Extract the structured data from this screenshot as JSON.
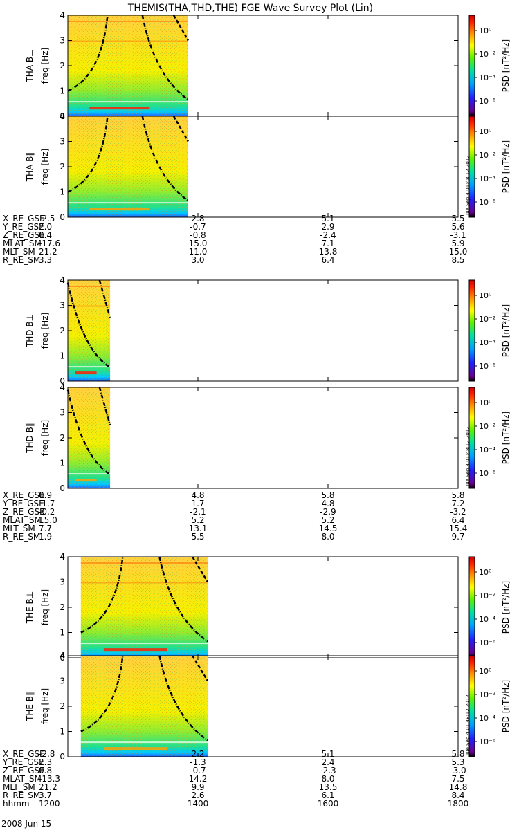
{
  "title": "THEMIS(THA,THD,THE) FGE Wave Survey Plot (Lin)",
  "colorbar": {
    "label": "PSD [nT²/Hz]",
    "ticks": [
      "10⁰",
      "10⁻²",
      "10⁻⁴",
      "10⁻⁶"
    ]
  },
  "footer": {
    "date": "2008 Jun 15"
  },
  "chart_data": {
    "type": "heatmap",
    "x_range": [
      1200,
      1800
    ],
    "x_ticks": [
      1200,
      1400,
      1600,
      1800
    ],
    "y_range": [
      0,
      4
    ],
    "y_ticks": [
      0,
      1,
      2,
      3,
      4
    ],
    "probes": [
      {
        "id": "tha",
        "panels": [
          {
            "ylabel": "THA B⊥",
            "yunit": "freq [Hz]",
            "data_span": [
              1200,
              1385
            ],
            "stamp": ""
          },
          {
            "ylabel": "THA B∥",
            "yunit": "freq [Hz]",
            "data_span": [
              1200,
              1385
            ],
            "stamp": "Tue Sep  4 01:48:12 2012"
          }
        ],
        "ephemeris": [
          {
            "name": "X_RE_GSE",
            "values": [
              "-2.5",
              "2.8",
              "5.1",
              "5.5"
            ]
          },
          {
            "name": "Y_RE_GSE",
            "values": [
              "2.0",
              "-0.7",
              "2.9",
              "5.6"
            ]
          },
          {
            "name": "Z_RE_GSE",
            "values": [
              "0.4",
              "-0.8",
              "-2.4",
              "-3.1"
            ]
          },
          {
            "name": "MLAT_SM",
            "values": [
              "-17.6",
              "15.0",
              "7.1",
              "5.9"
            ]
          },
          {
            "name": "MLT_SM",
            "values": [
              "21.2",
              "11.0",
              "13.8",
              "15.0"
            ]
          },
          {
            "name": "R_RE_SM",
            "values": [
              "3.3",
              "3.0",
              "6.4",
              "8.5"
            ]
          }
        ]
      },
      {
        "id": "thd",
        "panels": [
          {
            "ylabel": "THD B⊥",
            "yunit": "freq [Hz]",
            "data_span": [
              1200,
              1265
            ],
            "stamp": ""
          },
          {
            "ylabel": "THD B∥",
            "yunit": "freq [Hz]",
            "data_span": [
              1200,
              1265
            ],
            "stamp": "Tue Sep  4 01:48:12 2012"
          }
        ],
        "ephemeris": [
          {
            "name": "X_RE_GSE",
            "values": [
              "0.9",
              "4.8",
              "5.8",
              "5.8"
            ]
          },
          {
            "name": "Y_RE_GSE",
            "values": [
              "-1.7",
              "1.7",
              "4.8",
              "7.2"
            ]
          },
          {
            "name": "Z_RE_GSE",
            "values": [
              "-0.2",
              "-2.1",
              "-2.9",
              "-3.2"
            ]
          },
          {
            "name": "MLAT_SM",
            "values": [
              "15.0",
              "5.2",
              "5.2",
              "6.4"
            ]
          },
          {
            "name": "MLT_SM",
            "values": [
              "7.7",
              "13.1",
              "14.5",
              "15.4"
            ]
          },
          {
            "name": "R_RE_SM",
            "values": [
              "1.9",
              "5.5",
              "8.0",
              "9.7"
            ]
          }
        ]
      },
      {
        "id": "the",
        "panels": [
          {
            "ylabel": "THE B⊥",
            "yunit": "freq [Hz]",
            "data_span": [
              1220,
              1415
            ],
            "stamp": ""
          },
          {
            "ylabel": "THE B∥",
            "yunit": "freq [Hz]",
            "data_span": [
              1220,
              1415
            ],
            "stamp": "Tue Sep  4 01:48:12 2012"
          }
        ],
        "ephemeris": [
          {
            "name": "X_RE_GSE",
            "values": [
              "-2.8",
              "2.2",
              "5.1",
              "5.8"
            ]
          },
          {
            "name": "Y_RE_GSE",
            "values": [
              "2.3",
              "-1.3",
              "2.4",
              "5.3"
            ]
          },
          {
            "name": "Z_RE_GSE",
            "values": [
              "0.8",
              "-0.7",
              "-2.3",
              "-3.0"
            ]
          },
          {
            "name": "MLAT_SM",
            "values": [
              "-13.3",
              "14.2",
              "8.0",
              "7.5"
            ]
          },
          {
            "name": "MLT_SM",
            "values": [
              "21.2",
              "9.9",
              "13.5",
              "14.8"
            ]
          },
          {
            "name": "R_RE_SM",
            "values": [
              "3.7",
              "2.6",
              "6.1",
              "8.4"
            ]
          },
          {
            "name": "hhmm",
            "values": [
              "1200",
              "1400",
              "1600",
              "1800"
            ]
          }
        ]
      }
    ]
  }
}
